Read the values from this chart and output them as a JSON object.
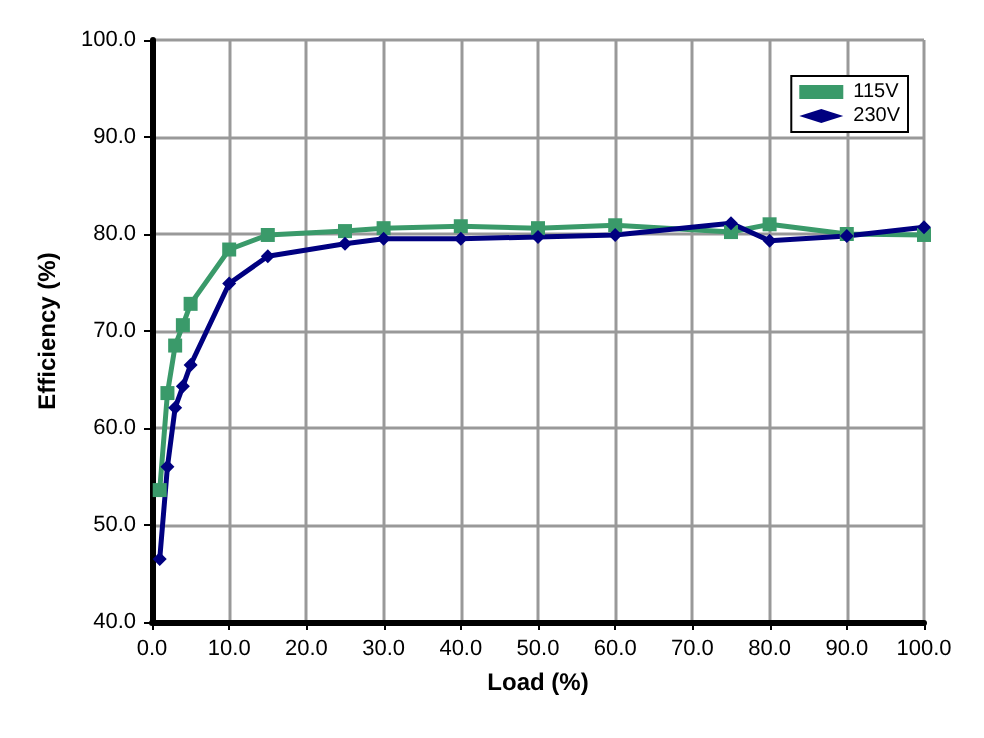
{
  "chart_data": {
    "type": "line",
    "xlabel": "Load (%)",
    "ylabel": "Efficiency (%)",
    "xlim": [
      0,
      100
    ],
    "ylim": [
      40,
      100
    ],
    "xticks": [
      {
        "value": 0,
        "label": "0.0"
      },
      {
        "value": 10,
        "label": "10.0"
      },
      {
        "value": 20,
        "label": "20.0"
      },
      {
        "value": 30,
        "label": "30.0"
      },
      {
        "value": 40,
        "label": "40.0"
      },
      {
        "value": 50,
        "label": "50.0"
      },
      {
        "value": 60,
        "label": "60.0"
      },
      {
        "value": 70,
        "label": "70.0"
      },
      {
        "value": 80,
        "label": "80.0"
      },
      {
        "value": 90,
        "label": "90.0"
      },
      {
        "value": 100,
        "label": "100.0"
      }
    ],
    "yticks": [
      {
        "value": 40,
        "label": "40.0"
      },
      {
        "value": 50,
        "label": "50.0"
      },
      {
        "value": 60,
        "label": "60.0"
      },
      {
        "value": 70,
        "label": "70.0"
      },
      {
        "value": 80,
        "label": "80.0"
      },
      {
        "value": 90,
        "label": "90.0"
      },
      {
        "value": 100,
        "label": "100.0"
      }
    ],
    "grid": true,
    "legend": "top right",
    "line_style": "solid",
    "series": [
      {
        "name": "115V",
        "color": "#3a9a6a",
        "marker": "square",
        "x": [
          1,
          2,
          3,
          4,
          5,
          10,
          15,
          25,
          30,
          40,
          50,
          60,
          75,
          80,
          90,
          100
        ],
        "values": [
          53.6,
          63.6,
          68.5,
          70.6,
          72.8,
          78.4,
          79.9,
          80.3,
          80.6,
          80.8,
          80.6,
          80.9,
          80.2,
          81.0,
          80.0,
          79.9
        ]
      },
      {
        "name": "230V",
        "color": "#000080",
        "marker": "diamond",
        "x": [
          1,
          2,
          3,
          4,
          5,
          10,
          15,
          25,
          30,
          40,
          50,
          60,
          75,
          80,
          90,
          100
        ],
        "values": [
          46.5,
          56.0,
          62.1,
          64.3,
          66.5,
          74.9,
          77.7,
          79.0,
          79.5,
          79.5,
          79.7,
          79.9,
          81.1,
          79.3,
          79.8,
          80.7
        ]
      }
    ]
  }
}
